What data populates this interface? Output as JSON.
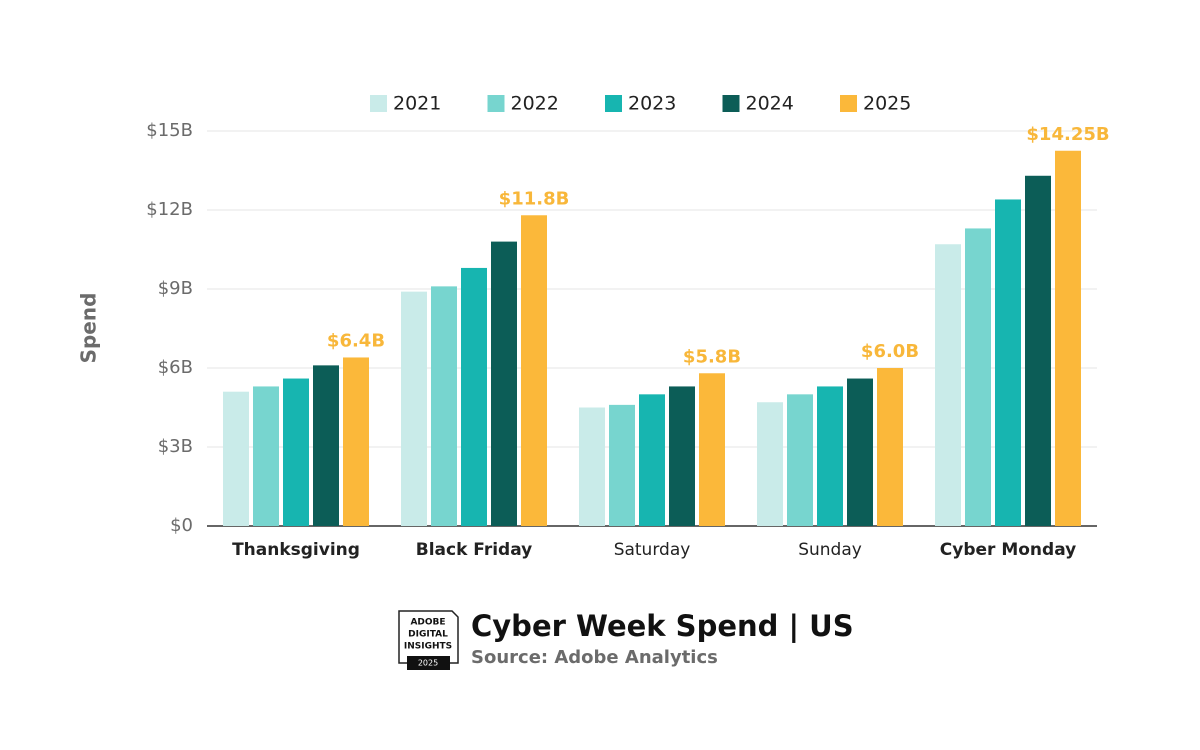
{
  "chart_data": {
    "type": "bar",
    "title": "Cyber Week Spend | US",
    "source": "Source: Adobe Analytics",
    "badge": {
      "lines": [
        "ADOBE",
        "DIGITAL",
        "INSIGHTS"
      ],
      "year": "2025"
    },
    "y_label": "Spend",
    "categories": [
      "Thanksgiving",
      "Black Friday",
      "Saturday",
      "Sunday",
      "Cyber Monday"
    ],
    "series": [
      {
        "name": "2021",
        "color": "#c9ebe9",
        "values": [
          5.1,
          8.9,
          4.5,
          4.7,
          10.7
        ]
      },
      {
        "name": "2022",
        "color": "#77d5cf",
        "values": [
          5.3,
          9.1,
          4.6,
          5.0,
          11.3
        ]
      },
      {
        "name": "2023",
        "color": "#17b5b0",
        "values": [
          5.6,
          9.8,
          5.0,
          5.3,
          12.4
        ]
      },
      {
        "name": "2024",
        "color": "#0c5d57",
        "values": [
          6.1,
          10.8,
          5.3,
          5.6,
          13.3
        ]
      },
      {
        "name": "2025",
        "color": "#fbb83a",
        "values": [
          6.4,
          11.8,
          5.8,
          6.0,
          14.25
        ],
        "value_labels": [
          "$6.4B",
          "$11.8B",
          "$5.8B",
          "$6.0B",
          "$14.25B"
        ]
      }
    ],
    "ylim": [
      0,
      15
    ],
    "yticks": [
      {
        "value": 0,
        "label": "$0"
      },
      {
        "value": 3,
        "label": "$3B"
      },
      {
        "value": 6,
        "label": "$6B"
      },
      {
        "value": 9,
        "label": "$9B"
      },
      {
        "value": 12,
        "label": "$12B"
      },
      {
        "value": 15,
        "label": "$15B"
      }
    ],
    "grid": true
  }
}
